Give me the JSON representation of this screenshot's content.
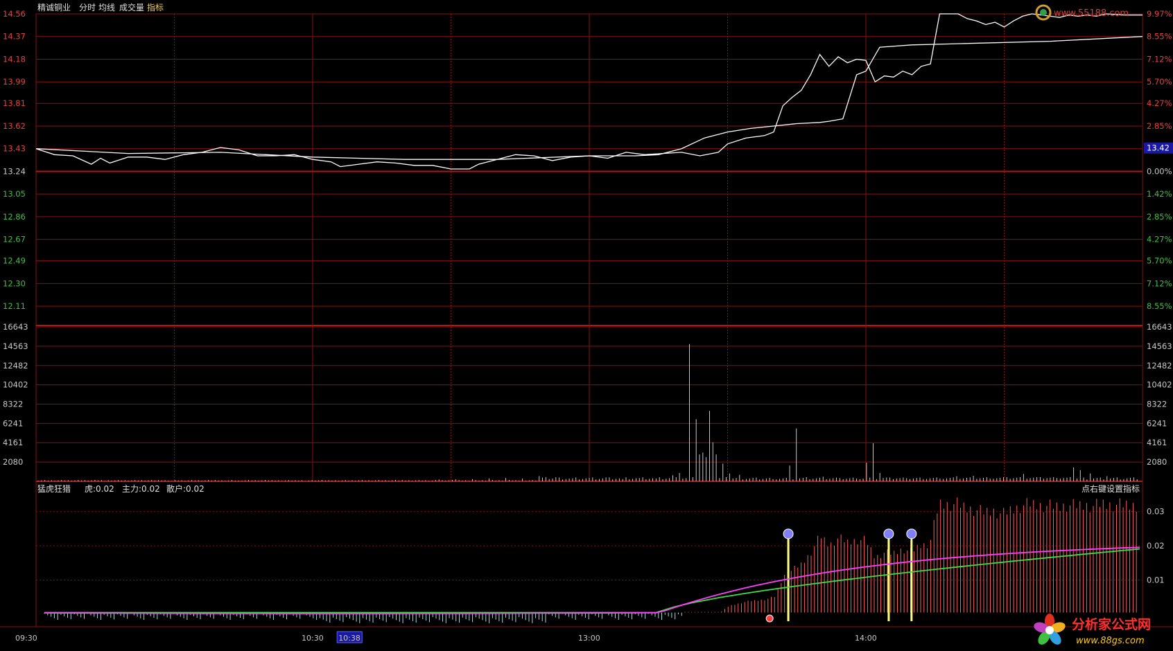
{
  "header": {
    "stock_name": "精诚铜业",
    "menu": [
      "分时",
      "均线",
      "成交量",
      "指标"
    ]
  },
  "colors": {
    "grid": "#8a1010",
    "grid_strong": "#b01818",
    "price_line": "#ffffff",
    "avg_line": "#ffffff",
    "up_text": "#e84040",
    "down_text": "#40c040",
    "axis_text": "#c8c8c8",
    "volume_bar": "#c8c8c8",
    "tiger_line": "#ff40ff",
    "main_line": "#40e040",
    "osc_up": "#ff6060",
    "osc_down": "#a0e0e0",
    "signal_bar": "#ffff80"
  },
  "indicator": {
    "name": "猛虎狂猎",
    "tiger_label": "虎:0.02",
    "main_label": "主力:0.02",
    "retail_label": "散户:0.02",
    "right_hint": "点右键设置指标"
  },
  "current_price_tag": "13.42",
  "logo_top_text": "www.55188.com",
  "logo_bottom": {
    "brand": "分析家公式网",
    "url": "www.88gs.com"
  },
  "chart_data": {
    "type": "line",
    "prev_close": 13.24,
    "price_axis": {
      "ticks": [
        "14.56",
        "14.37",
        "14.18",
        "13.99",
        "13.81",
        "13.62",
        "13.43",
        "13.24",
        "13.05",
        "12.86",
        "12.67",
        "12.49",
        "12.30",
        "12.11"
      ],
      "pct_ticks": [
        "9.97%",
        "8.55%",
        "7.12%",
        "5.70%",
        "4.27%",
        "2.85%",
        "1.42%",
        "0.00%",
        "1.42%",
        "2.85%",
        "4.27%",
        "5.70%",
        "7.12%",
        "8.55%"
      ],
      "range": [
        11.96,
        14.56
      ]
    },
    "volume_axis": {
      "ticks": [
        "16643",
        "14563",
        "12482",
        "10402",
        "8322",
        "6241",
        "4161",
        "2080"
      ],
      "max": 16643
    },
    "indicator_axis": {
      "ticks": [
        "0.03",
        "0.02",
        "0.01"
      ],
      "range": [
        0,
        0.035
      ]
    },
    "x_axis": {
      "ticks": [
        {
          "label": "09:30",
          "minute": 0
        },
        {
          "label": "10:30",
          "minute": 60
        },
        {
          "label": "10:38",
          "minute": 68,
          "highlight": true
        },
        {
          "label": "13:00",
          "minute": 120
        },
        {
          "label": "14:00",
          "minute": 180
        }
      ],
      "total_minutes": 240
    },
    "price_keypoints": [
      [
        0,
        13.43
      ],
      [
        4,
        13.38
      ],
      [
        8,
        13.37
      ],
      [
        12,
        13.3
      ],
      [
        14,
        13.35
      ],
      [
        16,
        13.31
      ],
      [
        20,
        13.36
      ],
      [
        24,
        13.36
      ],
      [
        28,
        13.34
      ],
      [
        32,
        13.38
      ],
      [
        36,
        13.4
      ],
      [
        40,
        13.44
      ],
      [
        44,
        13.42
      ],
      [
        48,
        13.37
      ],
      [
        52,
        13.37
      ],
      [
        56,
        13.38
      ],
      [
        60,
        13.34
      ],
      [
        64,
        13.32
      ],
      [
        66,
        13.28
      ],
      [
        70,
        13.3
      ],
      [
        74,
        13.32
      ],
      [
        78,
        13.31
      ],
      [
        82,
        13.29
      ],
      [
        86,
        13.29
      ],
      [
        90,
        13.26
      ],
      [
        94,
        13.26
      ],
      [
        96,
        13.3
      ],
      [
        100,
        13.34
      ],
      [
        104,
        13.38
      ],
      [
        108,
        13.37
      ],
      [
        112,
        13.33
      ],
      [
        116,
        13.36
      ],
      [
        120,
        13.37
      ],
      [
        124,
        13.35
      ],
      [
        128,
        13.4
      ],
      [
        132,
        13.38
      ],
      [
        136,
        13.39
      ],
      [
        140,
        13.4
      ],
      [
        144,
        13.37
      ],
      [
        148,
        13.4
      ],
      [
        150,
        13.47
      ],
      [
        154,
        13.52
      ],
      [
        158,
        13.54
      ],
      [
        160,
        13.57
      ],
      [
        162,
        13.79
      ],
      [
        164,
        13.86
      ],
      [
        166,
        13.92
      ],
      [
        168,
        14.05
      ],
      [
        170,
        14.22
      ],
      [
        172,
        14.12
      ],
      [
        174,
        14.2
      ],
      [
        176,
        14.15
      ],
      [
        178,
        14.18
      ],
      [
        180,
        14.17
      ],
      [
        182,
        13.99
      ],
      [
        184,
        14.04
      ],
      [
        186,
        14.03
      ],
      [
        188,
        14.08
      ],
      [
        190,
        14.05
      ],
      [
        192,
        14.12
      ],
      [
        194,
        14.14
      ],
      [
        196,
        14.56
      ],
      [
        198,
        14.56
      ],
      [
        200,
        14.56
      ],
      [
        202,
        14.52
      ],
      [
        204,
        14.5
      ],
      [
        206,
        14.47
      ],
      [
        208,
        14.49
      ],
      [
        210,
        14.45
      ],
      [
        212,
        14.5
      ],
      [
        214,
        14.54
      ],
      [
        216,
        14.56
      ],
      [
        218,
        14.55
      ],
      [
        220,
        14.54
      ],
      [
        222,
        14.53
      ],
      [
        224,
        14.55
      ],
      [
        226,
        14.54
      ],
      [
        228,
        14.55
      ],
      [
        230,
        14.54
      ],
      [
        232,
        14.56
      ],
      [
        236,
        14.55
      ],
      [
        240,
        14.55
      ]
    ],
    "avg_keypoints": [
      [
        0,
        13.43
      ],
      [
        20,
        13.39
      ],
      [
        40,
        13.4
      ],
      [
        60,
        13.36
      ],
      [
        80,
        13.34
      ],
      [
        100,
        13.34
      ],
      [
        120,
        13.37
      ],
      [
        130,
        13.37
      ],
      [
        135,
        13.38
      ],
      [
        140,
        13.43
      ],
      [
        145,
        13.52
      ],
      [
        150,
        13.57
      ],
      [
        155,
        13.6
      ],
      [
        160,
        13.62
      ],
      [
        165,
        13.64
      ],
      [
        170,
        13.65
      ],
      [
        172,
        13.66
      ],
      [
        175,
        13.68
      ],
      [
        178,
        14.05
      ],
      [
        180,
        14.08
      ],
      [
        183,
        14.28
      ],
      [
        190,
        14.3
      ],
      [
        200,
        14.31
      ],
      [
        220,
        14.33
      ],
      [
        240,
        14.37
      ]
    ],
    "volume_spikes": [
      [
        0,
        50
      ],
      [
        20,
        40
      ],
      [
        40,
        30
      ],
      [
        60,
        80
      ],
      [
        80,
        30
      ],
      [
        100,
        60
      ],
      [
        118,
        80
      ],
      [
        120,
        200
      ],
      [
        125,
        220
      ],
      [
        130,
        250
      ],
      [
        135,
        320
      ],
      [
        140,
        350
      ],
      [
        145,
        300
      ],
      [
        150,
        550
      ],
      [
        155,
        440
      ],
      [
        160,
        320
      ],
      [
        165,
        380
      ],
      [
        170,
        420
      ],
      [
        175,
        250
      ],
      [
        180,
        350
      ],
      [
        185,
        300
      ],
      [
        190,
        650
      ],
      [
        192,
        900
      ],
      [
        195,
        14800
      ],
      [
        197,
        6700
      ],
      [
        198,
        2900
      ],
      [
        199,
        3100
      ],
      [
        200,
        2600
      ],
      [
        201,
        7600
      ],
      [
        202,
        4200
      ],
      [
        203,
        2900
      ],
      [
        205,
        1900
      ],
      [
        207,
        850
      ],
      [
        210,
        700
      ],
      [
        215,
        400
      ],
      [
        220,
        250
      ],
      [
        225,
        1700
      ],
      [
        227,
        5700
      ],
      [
        230,
        450
      ],
      [
        235,
        500
      ],
      [
        240,
        350
      ],
      [
        245,
        300
      ],
      [
        248,
        2000
      ],
      [
        250,
        4100
      ],
      [
        252,
        900
      ],
      [
        255,
        400
      ],
      [
        260,
        350
      ],
      [
        265,
        250
      ],
      [
        270,
        300
      ],
      [
        275,
        550
      ],
      [
        280,
        600
      ],
      [
        285,
        300
      ],
      [
        290,
        450
      ],
      [
        295,
        800
      ],
      [
        300,
        450
      ],
      [
        305,
        350
      ],
      [
        310,
        1500
      ],
      [
        312,
        1200
      ],
      [
        315,
        850
      ],
      [
        320,
        550
      ],
      [
        325,
        250
      ]
    ]
  }
}
